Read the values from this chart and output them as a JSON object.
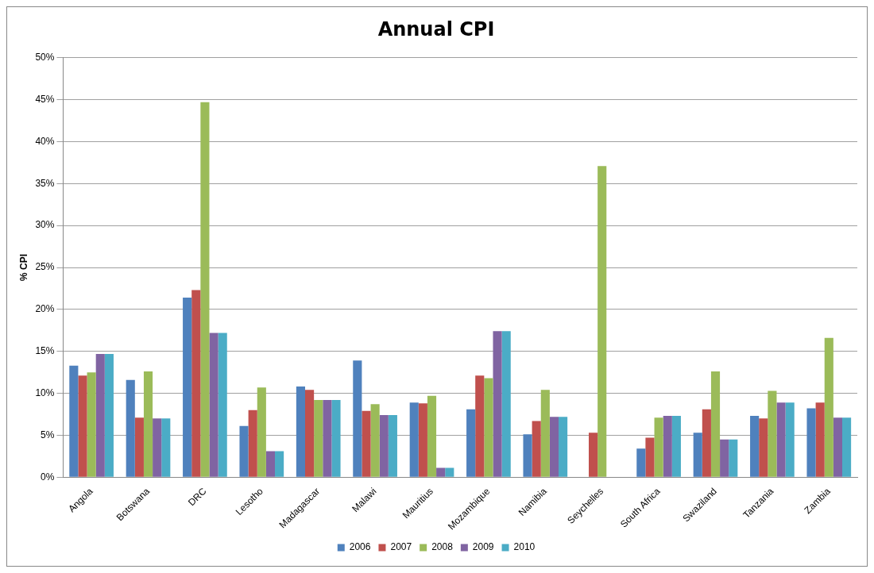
{
  "chart_data": {
    "type": "bar",
    "title": "Annual CPI",
    "ylabel": "% CPI",
    "categories": [
      "Angola",
      "Botswana",
      "DRC",
      "Lesotho",
      "Madagascar",
      "Malawi",
      "Mauritius",
      "Mozambique",
      "Namibia",
      "Seychelles",
      "South Africa",
      "Swaziland",
      "Tanzania",
      "Zambia"
    ],
    "series": [
      {
        "name": "2006",
        "color": "#4f81bd",
        "values": [
          13.3,
          11.6,
          21.4,
          6.1,
          10.8,
          13.9,
          8.9,
          8.1,
          5.1,
          0,
          3.4,
          5.3,
          7.3,
          8.2
        ]
      },
      {
        "name": "2007",
        "color": "#c0504d",
        "values": [
          12.1,
          7.1,
          22.3,
          8.0,
          10.4,
          7.9,
          8.8,
          12.1,
          6.7,
          5.3,
          4.7,
          8.1,
          7.0,
          8.9
        ]
      },
      {
        "name": "2008",
        "color": "#9bbb59",
        "values": [
          12.5,
          12.6,
          44.7,
          10.7,
          9.2,
          8.7,
          9.7,
          11.8,
          10.4,
          37.1,
          7.1,
          12.6,
          10.3,
          16.6
        ]
      },
      {
        "name": "2009",
        "color": "#8064a2",
        "values": [
          14.7,
          7.0,
          17.2,
          3.1,
          9.2,
          7.4,
          1.1,
          17.4,
          7.2,
          0,
          7.3,
          4.5,
          8.9,
          7.1
        ]
      },
      {
        "name": "2010",
        "color": "#4bacc6",
        "values": [
          14.7,
          7.0,
          17.2,
          3.1,
          9.2,
          7.4,
          1.1,
          17.4,
          7.2,
          0,
          7.3,
          4.5,
          8.9,
          7.1
        ]
      }
    ],
    "ylim": [
      0,
      50
    ],
    "yticks": [
      {
        "value": 0,
        "label": "0%"
      },
      {
        "value": 5,
        "label": "5%"
      },
      {
        "value": 10,
        "label": "10%"
      },
      {
        "value": 15,
        "label": "15%"
      },
      {
        "value": 20,
        "label": "20%"
      },
      {
        "value": 25,
        "label": "25%"
      },
      {
        "value": 30,
        "label": "30%"
      },
      {
        "value": 35,
        "label": "35%"
      },
      {
        "value": 40,
        "label": "40%"
      },
      {
        "value": 45,
        "label": "45%"
      },
      {
        "value": 50,
        "label": "50%"
      }
    ],
    "grid": "y",
    "legend": "bottom"
  }
}
